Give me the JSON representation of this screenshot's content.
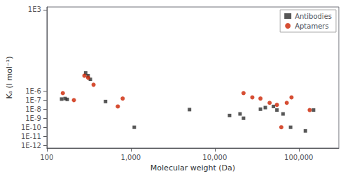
{
  "chart_data": {
    "type": "scatter",
    "xlabel": "Molecular weight (Da)",
    "ylabel": "Kₐ (l mol⁻¹)",
    "log": true,
    "grid": false,
    "legend": "upper right",
    "xlim": [
      100,
      300000
    ],
    "ylim": [
      5e-13,
      2000.0
    ],
    "xticks": [
      100,
      {
        "value": 1000,
        "label": "1,000"
      },
      {
        "value": 10000,
        "label": "10,000"
      },
      {
        "value": 100000,
        "label": "100,000"
      }
    ],
    "yticks": [
      {
        "value": 1000.0,
        "label": "1E3"
      },
      {
        "value": 1e-06,
        "label": "1E-6"
      },
      {
        "value": 1e-07,
        "label": "1E-7"
      },
      {
        "value": 1e-08,
        "label": "1E-8"
      },
      {
        "value": 1e-09,
        "label": "1E-9"
      },
      {
        "value": 1e-10,
        "label": "1E-10"
      },
      {
        "value": 1e-11,
        "label": "1E-11"
      },
      {
        "value": 1e-12,
        "label": "1E-12"
      }
    ],
    "series": [
      {
        "name": "Antibodies",
        "color": "#2d2d2d",
        "marker": "square",
        "x": [
          150,
          165,
          175,
          290,
          310,
          330,
          500,
          1100,
          5000,
          15000,
          20000,
          22000,
          35000,
          40000,
          50000,
          55000,
          65000,
          80000,
          120000,
          150000
        ],
        "values": [
          1.3e-07,
          1.5e-07,
          1.2e-07,
          0.0001,
          5e-05,
          2e-05,
          7e-08,
          1e-10,
          9e-09,
          2e-09,
          3e-09,
          1e-09,
          1e-08,
          1.5e-08,
          2e-08,
          8e-09,
          3e-09,
          1e-10,
          4e-11,
          8e-09
        ]
      },
      {
        "name": "Aptamers",
        "color": "#cc2200",
        "marker": "circle",
        "x": [
          155,
          210,
          280,
          310,
          360,
          700,
          800,
          22000,
          28000,
          35000,
          45000,
          55000,
          62000,
          72000,
          82000,
          135000
        ],
        "values": [
          6e-07,
          1e-07,
          5e-05,
          3e-05,
          5e-06,
          2e-08,
          1.5e-07,
          6e-07,
          2e-07,
          1.5e-07,
          5e-08,
          3e-08,
          1e-10,
          5e-08,
          2e-07,
          8e-09
        ]
      }
    ]
  }
}
